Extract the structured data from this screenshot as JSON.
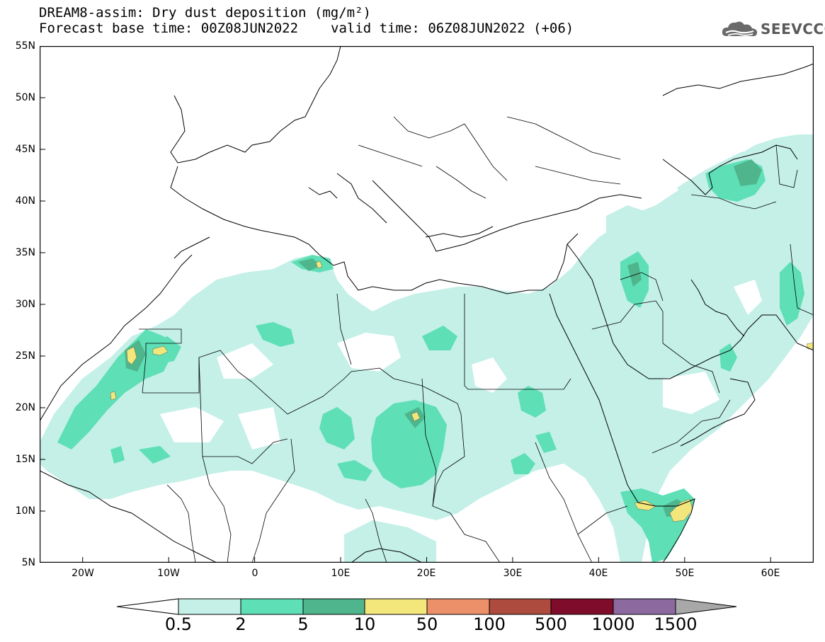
{
  "header": {
    "title_line1": "DREAM8-assim: Dry dust deposition (mg/m²)",
    "base_time": "Forecast base time: 00Z08JUN2022",
    "valid_time": "valid time: 06Z08JUN2022 (+06)"
  },
  "logo": {
    "text": "SEEVCCC",
    "icon": "cloud-logo-icon"
  },
  "map": {
    "lat_ticks": [
      "55N",
      "50N",
      "45N",
      "40N",
      "35N",
      "30N",
      "25N",
      "20N",
      "15N",
      "10N",
      "5N"
    ],
    "lon_ticks": [
      "20W",
      "10W",
      "0",
      "10E",
      "20E",
      "30E",
      "40E",
      "50E",
      "60E"
    ],
    "lat_range": [
      5,
      55
    ],
    "lon_range": [
      -25,
      65
    ]
  },
  "legend": {
    "labels": [
      "0.5",
      "2",
      "5",
      "10",
      "50",
      "100",
      "500",
      "1000",
      "1500"
    ],
    "colors": [
      "#c4f0e8",
      "#5edfb6",
      "#4fb58c",
      "#f3e77c",
      "#ec906a",
      "#ad4b3f",
      "#7f0c2a",
      "#8c6aa0",
      "#a8a8a8"
    ]
  },
  "colors": {
    "level1": "#c4f0e8",
    "level2": "#5edfb6",
    "level3": "#4fb58c",
    "level4": "#f3e77c"
  }
}
